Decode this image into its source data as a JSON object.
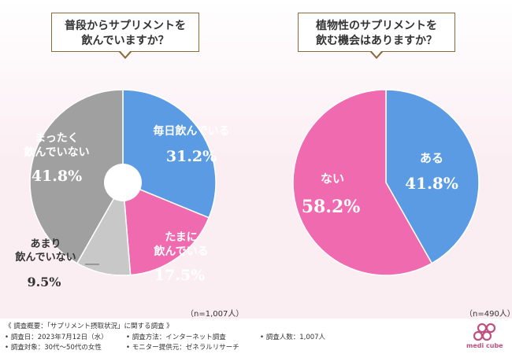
{
  "charts": [
    {
      "title_lines": [
        "普段からサプリメントを",
        "飲んでいますか？"
      ],
      "sample": "（n=1,007人）",
      "type": "donut",
      "slices": [
        {
          "label_lines": [
            "毎日飲んでいる"
          ],
          "value": 31.2,
          "value_text": "31.2%",
          "color": "#5a9be3",
          "text_color": "#ffffff"
        },
        {
          "label_lines": [
            "たまに",
            "飲んでいる"
          ],
          "value": 17.5,
          "value_text": "17.5%",
          "color": "#f06ab0",
          "text_color": "#ffffff"
        },
        {
          "label_lines": [
            "あまり",
            "飲んでいない"
          ],
          "value": 9.5,
          "value_text": "9.5%",
          "color": "#c8c8c8",
          "text_color": "#333333"
        },
        {
          "label_lines": [
            "まったく",
            "飲んでいない"
          ],
          "value": 41.8,
          "value_text": "41.8%",
          "color": "#a0a0a0",
          "text_color": "#ffffff"
        }
      ]
    },
    {
      "title_lines": [
        "植物性のサプリメントを",
        "飲む機会はありますか？"
      ],
      "sample": "（n=490人）",
      "type": "pie",
      "slices": [
        {
          "label_lines": [
            "ある"
          ],
          "value": 41.8,
          "value_text": "41.8%",
          "color": "#5a9be3",
          "text_color": "#ffffff"
        },
        {
          "label_lines": [
            "ない"
          ],
          "value": 58.2,
          "value_text": "58.2%",
          "color": "#f06ab0",
          "text_color": "#ffffff"
        }
      ]
    }
  ],
  "chart_data": [
    {
      "type": "pie",
      "title": "普段からサプリメントを飲んでいますか？",
      "categories": [
        "毎日飲んでいる",
        "たまに飲んでいる",
        "あまり飲んでいない",
        "まったく飲んでいない"
      ],
      "values": [
        31.2,
        17.5,
        9.5,
        41.8
      ],
      "n": "（n=1,007人）"
    },
    {
      "type": "pie",
      "title": "植物性のサプリメントを飲む機会はありますか？",
      "categories": [
        "ある",
        "ない"
      ],
      "values": [
        41.8,
        58.2
      ],
      "n": "（n=490人）"
    }
  ],
  "footer": {
    "heading": "《 調査概要：「サプリメント摂取状況」に関する調査 》",
    "date": "• 調査日：2023年7月12日（水）",
    "method": "• 調査方法：インターネット調査",
    "count": "• 調査人数：1,007人",
    "target": "• 調査対象：30代〜50代の女性",
    "provider": "• モニター提供元：ゼネラルリサーチ"
  },
  "logo_text": "medi cube"
}
